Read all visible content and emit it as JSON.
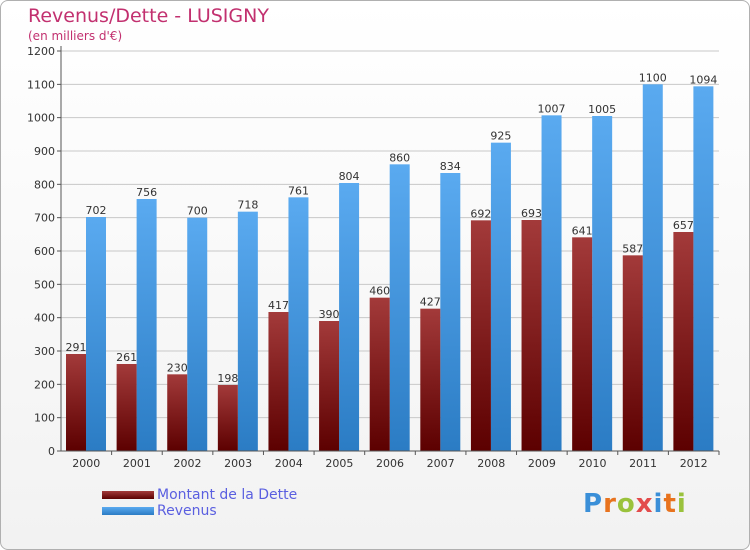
{
  "header": {
    "title": "Revenus/Dette - LUSIGNY",
    "subtitle": "(en milliers d'€)"
  },
  "brand": {
    "text": "Proxiti",
    "colors": [
      "#3a8fd8",
      "#e8731e",
      "#9ac23c",
      "#e34b4b",
      "#3a8fd8",
      "#e8731e",
      "#9ac23c"
    ]
  },
  "colors": {
    "debt_dark": "#5c0000",
    "debt_light": "#a33a3a",
    "revenue_dark": "#2b7cc4",
    "revenue_light": "#5aaaf0",
    "axis": "#555555",
    "grid": "#c8c8c8",
    "legend_text": "#5a5fe0",
    "title": "#c2306f"
  },
  "chart_data": {
    "type": "bar",
    "title": "Revenus/Dette - LUSIGNY",
    "subtitle": "(en milliers d'€)",
    "xlabel": "",
    "ylabel": "",
    "ylim": [
      0,
      1200
    ],
    "yticks": [
      0,
      100,
      200,
      300,
      400,
      500,
      600,
      700,
      800,
      900,
      1000,
      1100,
      1200
    ],
    "grid": true,
    "legend_position": "bottom-left",
    "categories": [
      "2000",
      "2001",
      "2002",
      "2003",
      "2004",
      "2005",
      "2006",
      "2007",
      "2008",
      "2009",
      "2010",
      "2011",
      "2012"
    ],
    "series": [
      {
        "name": "Montant de la Dette",
        "values": [
          291,
          261,
          230,
          198,
          417,
          390,
          460,
          427,
          692,
          693,
          641,
          587,
          657
        ]
      },
      {
        "name": "Revenus",
        "values": [
          702,
          756,
          700,
          718,
          761,
          804,
          860,
          834,
          925,
          1007,
          1005,
          1100,
          1094
        ]
      }
    ]
  }
}
